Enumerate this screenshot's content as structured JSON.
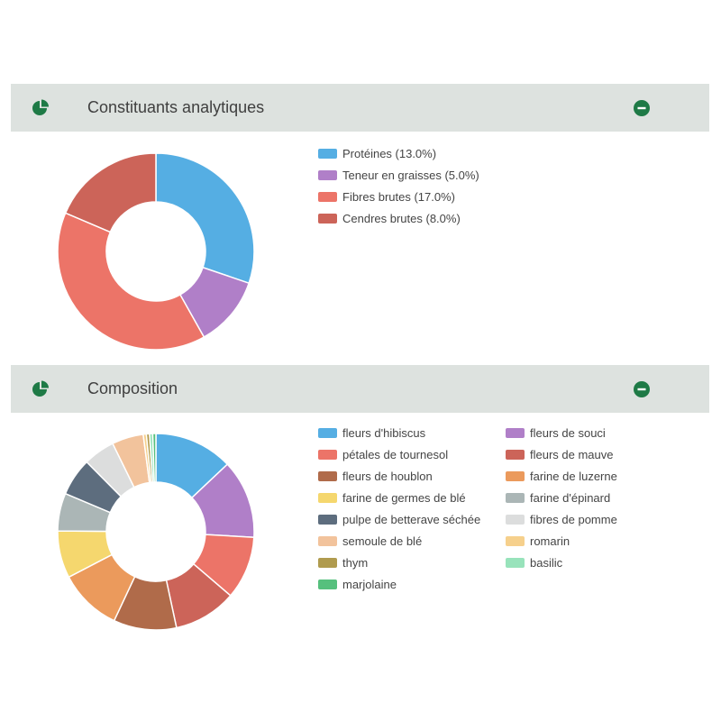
{
  "icons": {
    "panel_icon": "pie-chart-icon",
    "collapse_icon": "minus-circle-icon",
    "accent_color": "#1e7a46"
  },
  "panels": [
    {
      "title": "Constituants analytiques",
      "chart_data": {
        "type": "pie",
        "variant": "donut",
        "legend_position": "right",
        "labels": [
          "Protéines (13.0%)",
          "Teneur en graisses (5.0%)",
          "Fibres brutes (17.0%)",
          "Cendres brutes (8.0%)"
        ],
        "categories": [
          "Protéines",
          "Teneur en graisses",
          "Fibres brutes",
          "Cendres brutes"
        ],
        "values": [
          13.0,
          5.0,
          17.0,
          8.0
        ],
        "colors": [
          "#55aee3",
          "#b07fc8",
          "#ec7468",
          "#cc6459"
        ]
      }
    },
    {
      "title": "Composition",
      "chart_data": {
        "type": "pie",
        "variant": "donut",
        "legend_position": "right",
        "labels": [
          "fleurs d'hibiscus",
          "fleurs de souci",
          "pétales de tournesol",
          "fleurs de mauve",
          "fleurs de houblon",
          "farine de luzerne",
          "farine de germes de blé",
          "farine d'épinard",
          "pulpe de betterave séchée",
          "fibres de pomme",
          "semoule de blé",
          "romarin",
          "thym",
          "basilic",
          "marjolaine"
        ],
        "categories": [
          "fleurs d'hibiscus",
          "fleurs de souci",
          "pétales de tournesol",
          "fleurs de mauve",
          "fleurs de houblon",
          "farine de luzerne",
          "farine de germes de blé",
          "farine d'épinard",
          "pulpe de betterave séchée",
          "fibres de pomme",
          "semoule de blé",
          "romarin",
          "thym",
          "basilic",
          "marjolaine"
        ],
        "values": [
          12.5,
          12.5,
          10,
          10,
          10,
          10,
          7.5,
          6,
          6,
          5,
          5,
          0.5,
          0.5,
          0.5,
          0.5
        ],
        "colors": [
          "#55aee3",
          "#b07fc8",
          "#ec7468",
          "#cc6459",
          "#b06b4a",
          "#eb9a5c",
          "#f5d76e",
          "#abb6b6",
          "#5d6d7e",
          "#dcdddd",
          "#f2c39c",
          "#f6d08c",
          "#b09b4e",
          "#98e3bb",
          "#56c07d"
        ]
      }
    }
  ]
}
